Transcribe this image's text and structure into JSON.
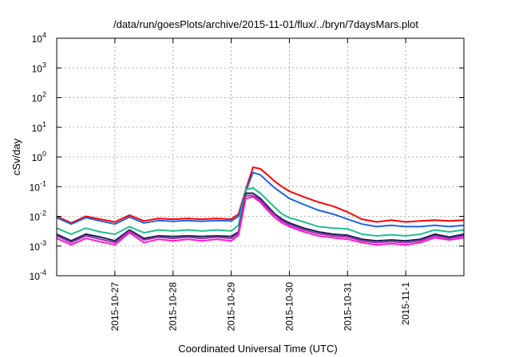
{
  "chart_data": {
    "type": "line",
    "title": "/data/run/goesPlots/archive/2015-11-01/flux/../bryn/7daysMars.plot",
    "xlabel": "Coordinated Universal Time (UTC)",
    "ylabel": "cSv/day",
    "yscale": "log",
    "ylim": [
      0.0001,
      10000
    ],
    "xlim": [
      "2015-10-26 00:00",
      "2015-11-02 00:00"
    ],
    "grid": true,
    "legend": "none",
    "xtick_labels": [
      "2015-10-27",
      "2015-10-28",
      "2015-10-29",
      "2015-10-30",
      "2015-10-31",
      "2015-11-1"
    ],
    "ytick_labels": [
      {
        "base": "10",
        "exp": "4"
      },
      {
        "base": "10",
        "exp": "3"
      },
      {
        "base": "10",
        "exp": "2"
      },
      {
        "base": "10",
        "exp": "1"
      },
      {
        "base": "10",
        "exp": "0"
      },
      {
        "base": "10",
        "exp": "-1"
      },
      {
        "base": "10",
        "exp": "-2"
      },
      {
        "base": "10",
        "exp": "-3"
      },
      {
        "base": "10",
        "exp": "-4"
      }
    ],
    "x": [
      "2015-10-26 00:00",
      "2015-10-26 06:00",
      "2015-10-26 12:00",
      "2015-10-26 18:00",
      "2015-10-27 00:00",
      "2015-10-27 06:00",
      "2015-10-27 12:00",
      "2015-10-27 18:00",
      "2015-10-28 00:00",
      "2015-10-28 06:00",
      "2015-10-28 12:00",
      "2015-10-28 18:00",
      "2015-10-29 00:00",
      "2015-10-29 03:00",
      "2015-10-29 06:00",
      "2015-10-29 09:00",
      "2015-10-29 12:00",
      "2015-10-29 15:00",
      "2015-10-29 18:00",
      "2015-10-29 21:00",
      "2015-10-30 00:00",
      "2015-10-30 06:00",
      "2015-10-30 12:00",
      "2015-10-30 18:00",
      "2015-10-31 00:00",
      "2015-10-31 06:00",
      "2015-10-31 12:00",
      "2015-10-31 18:00",
      "2015-11-01 00:00",
      "2015-11-01 06:00",
      "2015-11-01 12:00",
      "2015-11-01 18:00",
      "2015-11-02 00:00"
    ],
    "series": [
      {
        "color": "#ff0000",
        "values": [
          0.01,
          0.006,
          0.01,
          0.008,
          0.0065,
          0.011,
          0.007,
          0.0085,
          0.008,
          0.0085,
          0.008,
          0.0085,
          0.008,
          0.012,
          0.08,
          0.45,
          0.4,
          0.25,
          0.15,
          0.1,
          0.07,
          0.045,
          0.03,
          0.022,
          0.014,
          0.008,
          0.0065,
          0.0075,
          0.0065,
          0.007,
          0.0075,
          0.007,
          0.0075
        ]
      },
      {
        "color": "#1f64e6",
        "values": [
          0.009,
          0.0055,
          0.009,
          0.007,
          0.0055,
          0.0095,
          0.006,
          0.0072,
          0.0068,
          0.0072,
          0.0068,
          0.0072,
          0.007,
          0.01,
          0.07,
          0.3,
          0.25,
          0.15,
          0.09,
          0.06,
          0.04,
          0.025,
          0.016,
          0.012,
          0.008,
          0.0055,
          0.0045,
          0.005,
          0.0045,
          0.0045,
          0.005,
          0.0045,
          0.005
        ]
      },
      {
        "color": "#20c08a",
        "values": [
          0.004,
          0.0025,
          0.004,
          0.003,
          0.0025,
          0.0045,
          0.0028,
          0.0035,
          0.0032,
          0.0035,
          0.0032,
          0.0035,
          0.0032,
          0.005,
          0.08,
          0.09,
          0.06,
          0.035,
          0.02,
          0.012,
          0.009,
          0.0065,
          0.0045,
          0.004,
          0.0038,
          0.0025,
          0.0022,
          0.0024,
          0.0022,
          0.0025,
          0.0035,
          0.003,
          0.0035
        ]
      },
      {
        "color": "#1a1a50",
        "values": [
          0.0025,
          0.0015,
          0.0025,
          0.002,
          0.0015,
          0.0035,
          0.0018,
          0.0022,
          0.0021,
          0.0022,
          0.0021,
          0.0022,
          0.0021,
          0.003,
          0.06,
          0.06,
          0.04,
          0.022,
          0.012,
          0.008,
          0.006,
          0.004,
          0.003,
          0.0025,
          0.0023,
          0.0017,
          0.0015,
          0.0016,
          0.0015,
          0.0017,
          0.0025,
          0.002,
          0.0025
        ]
      },
      {
        "color": "#9b2fae",
        "values": [
          0.0022,
          0.0013,
          0.0022,
          0.0017,
          0.0013,
          0.0032,
          0.0016,
          0.002,
          0.0018,
          0.002,
          0.0018,
          0.002,
          0.0018,
          0.0027,
          0.05,
          0.05,
          0.035,
          0.019,
          0.011,
          0.007,
          0.0052,
          0.0035,
          0.0026,
          0.0022,
          0.002,
          0.0015,
          0.0013,
          0.0014,
          0.0013,
          0.0015,
          0.0022,
          0.0018,
          0.0022
        ]
      },
      {
        "color": "#ff1ccf",
        "values": [
          0.0018,
          0.0011,
          0.0018,
          0.0014,
          0.0011,
          0.0028,
          0.0013,
          0.0017,
          0.0015,
          0.0017,
          0.0015,
          0.0017,
          0.0015,
          0.0023,
          0.04,
          0.045,
          0.03,
          0.016,
          0.009,
          0.006,
          0.0045,
          0.003,
          0.0022,
          0.0019,
          0.0017,
          0.0013,
          0.0011,
          0.0012,
          0.0011,
          0.0013,
          0.0019,
          0.0016,
          0.0019
        ]
      }
    ]
  }
}
